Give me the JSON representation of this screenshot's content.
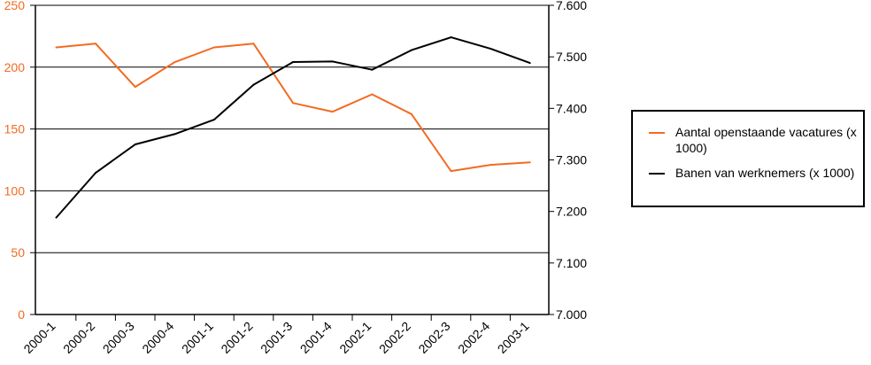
{
  "chart_data": {
    "type": "line",
    "title": "",
    "categories": [
      "2000-1",
      "2000-2",
      "2000-3",
      "2000-4",
      "2001-1",
      "2001-2",
      "2001-3",
      "2001-4",
      "2002-1",
      "2002-2",
      "2002-3",
      "2002-4",
      "2003-1"
    ],
    "left_axis": {
      "ylim": [
        0,
        250
      ],
      "ticks": [
        "0",
        "50",
        "100",
        "150",
        "200",
        "250"
      ],
      "tick_values": [
        0,
        50,
        100,
        150,
        200,
        250
      ],
      "color": "#f26b21"
    },
    "right_axis": {
      "ylim": [
        7000,
        7600
      ],
      "ticks": [
        "7.000",
        "7.100",
        "7.200",
        "7.300",
        "7.400",
        "7.500",
        "7.600"
      ],
      "tick_values": [
        7000,
        7100,
        7200,
        7300,
        7400,
        7500,
        7600
      ],
      "color": "#000000"
    },
    "series": [
      {
        "name": "Aantal openstaande vacatures (x 1000)",
        "axis": "left",
        "color": "#f26b21",
        "values": [
          216,
          219,
          184,
          204,
          216,
          219,
          171,
          164,
          178,
          162,
          116,
          121,
          123
        ]
      },
      {
        "name": "Banen van werknemers (x 1000)",
        "axis": "right",
        "color": "#000000",
        "values": [
          7188,
          7275,
          7330,
          7350,
          7378,
          7446,
          7490,
          7491,
          7475,
          7513,
          7538,
          7516,
          7488
        ]
      }
    ],
    "legend": {
      "position": "right",
      "items": [
        {
          "label": "Aantal openstaande vacatures (x 1000)",
          "color": "#f26b21"
        },
        {
          "label": "Banen van werknemers (x 1000)",
          "color": "#000000"
        }
      ]
    }
  }
}
